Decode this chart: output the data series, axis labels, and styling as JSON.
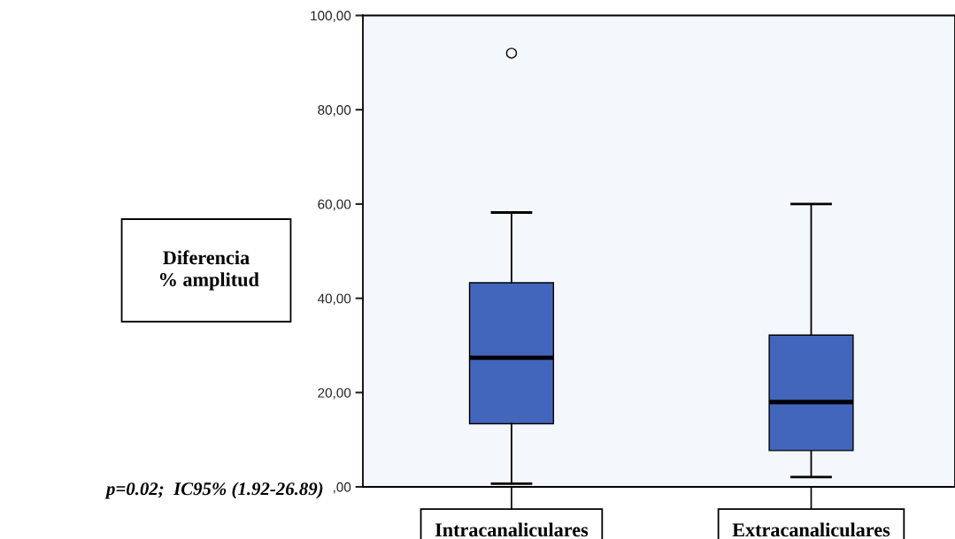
{
  "chart_data": {
    "type": "box",
    "ylabel": "Diferencia\n % amplitud",
    "categories": [
      "Intracanaliculares",
      "Extracanaliculares"
    ],
    "boxes": [
      {
        "low": 0.7,
        "q1": 13.4,
        "median": 27.4,
        "q3": 43.3,
        "high": 58.2,
        "outliers": [
          92.0
        ]
      },
      {
        "low": 2.1,
        "q1": 7.7,
        "median": 18.0,
        "q3": 32.2,
        "high": 60.0
      }
    ],
    "color": "#4366bd",
    "ylim": [
      0,
      100
    ],
    "yticks": [
      {
        "value": 0,
        "label": ",00"
      },
      {
        "value": 20,
        "label": "20,00"
      },
      {
        "value": 40,
        "label": "40,00"
      },
      {
        "value": 60,
        "label": "60,00"
      },
      {
        "value": 80,
        "label": "80,00"
      },
      {
        "value": 100,
        "label": "100,00"
      }
    ],
    "grid": false,
    "annotations": [
      "p=0.02;  IC95% (1.92-26.89)"
    ]
  }
}
